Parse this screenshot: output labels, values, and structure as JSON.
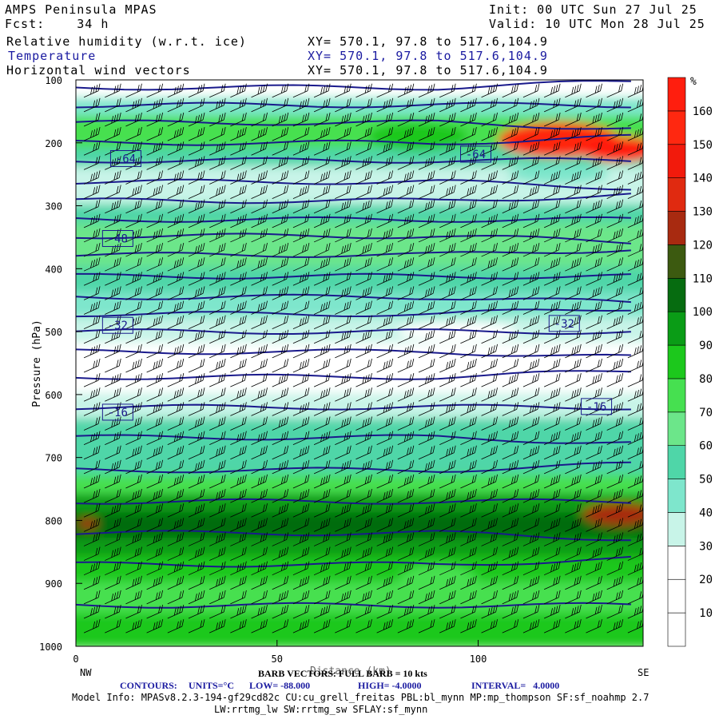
{
  "header": {
    "title": "AMPS Peninsula MPAS",
    "fcst": "Fcst:    34 h",
    "init": "Init: 00 UTC Sun 27 Jul 25",
    "valid": "Valid: 10 UTC Mon 28 Jul 25",
    "fields": [
      {
        "name": "Relative humidity (w.r.t. ice)",
        "xy": "XY= 570.1, 97.8 to 517.6,104.9",
        "color": "#000000"
      },
      {
        "name": "Temperature",
        "xy": "XY= 570.1, 97.8 to 517.6,104.9",
        "color": "#1a1aa0"
      },
      {
        "name": "Horizontal wind vectors",
        "xy": "XY= 570.1, 97.8 to 517.6,104.9",
        "color": "#000000"
      }
    ]
  },
  "chart_data": {
    "type": "heatmap",
    "ylabel": "Pressure (hPa)",
    "xlabel": "Distance (km)",
    "x_ticks": [
      0,
      50,
      100
    ],
    "x_range": [
      0,
      141
    ],
    "y_ticks": [
      100,
      200,
      300,
      400,
      500,
      600,
      700,
      800,
      900,
      1000
    ],
    "y_range": [
      100,
      1000
    ],
    "y_inverted": true,
    "left_end_label": "NW",
    "right_end_label": "SE",
    "colorbar": {
      "unit": "%",
      "levels": [
        0,
        10,
        20,
        30,
        40,
        50,
        60,
        70,
        80,
        90,
        100,
        110,
        120,
        130,
        140,
        150,
        160,
        170
      ],
      "tick_labels": [
        "10",
        "20",
        "30",
        "40",
        "50",
        "60",
        "70",
        "80",
        "90",
        "100",
        "110",
        "120",
        "130",
        "140",
        "150",
        "160"
      ],
      "colors": [
        "#ffffff",
        "#ffffff",
        "#ffffff",
        "#c8f4e8",
        "#7ee6cc",
        "#4fd6a8",
        "#6ce68a",
        "#46e050",
        "#1cc81c",
        "#0a9c16",
        "#066c10",
        "#3c5a10",
        "#a82a10",
        "#e02a10",
        "#f21a0c",
        "#ff2810",
        "#ff1e0e"
      ]
    },
    "rh_bands": [
      {
        "p": 100,
        "rh": 25
      },
      {
        "p": 130,
        "rh": 20
      },
      {
        "p": 160,
        "rh": 60
      },
      {
        "p": 185,
        "rh": 80
      },
      {
        "p": 210,
        "rh": 65
      },
      {
        "p": 240,
        "rh": 45
      },
      {
        "p": 270,
        "rh": 30
      },
      {
        "p": 300,
        "rh": 45
      },
      {
        "p": 330,
        "rh": 60
      },
      {
        "p": 360,
        "rh": 70
      },
      {
        "p": 400,
        "rh": 62
      },
      {
        "p": 440,
        "rh": 55
      },
      {
        "p": 480,
        "rh": 40
      },
      {
        "p": 520,
        "rh": 25
      },
      {
        "p": 560,
        "rh": 15
      },
      {
        "p": 600,
        "rh": 25
      },
      {
        "p": 640,
        "rh": 45
      },
      {
        "p": 690,
        "rh": 55
      },
      {
        "p": 730,
        "rh": 60
      },
      {
        "p": 760,
        "rh": 85
      },
      {
        "p": 790,
        "rh": 100
      },
      {
        "p": 830,
        "rh": 102
      },
      {
        "p": 860,
        "rh": 92
      },
      {
        "p": 900,
        "rh": 80
      },
      {
        "p": 950,
        "rh": 75
      },
      {
        "p": 1000,
        "rh": 92
      }
    ],
    "rh_features": [
      {
        "x": 85,
        "p": 190,
        "w": 25,
        "h": 45,
        "rh": 85
      },
      {
        "x": 120,
        "p": 195,
        "w": 30,
        "h": 55,
        "rh": 155
      },
      {
        "x": 135,
        "p": 210,
        "w": 20,
        "h": 40,
        "rh": 160
      },
      {
        "x": 135,
        "p": 790,
        "w": 18,
        "h": 35,
        "rh": 125
      },
      {
        "x": 3,
        "p": 805,
        "w": 5,
        "h": 15,
        "rh": 125
      },
      {
        "x": 90,
        "p": 900,
        "w": 20,
        "h": 60,
        "rh": 75
      },
      {
        "x": 120,
        "p": 250,
        "w": 25,
        "h": 30,
        "rh": 40
      },
      {
        "x": 95,
        "p": 500,
        "w": 30,
        "h": 30,
        "rh": 20
      }
    ],
    "temperature_contours": {
      "units": "°C",
      "low": -88.0,
      "high": -4.0,
      "interval": 4.0,
      "labels": [
        {
          "value": "-64",
          "x": 12,
          "p": 225
        },
        {
          "value": "-64",
          "x": 99,
          "p": 218
        },
        {
          "value": "-48",
          "x": 10,
          "p": 352
        },
        {
          "value": "-32",
          "x": 10,
          "p": 490
        },
        {
          "value": "-32",
          "x": 121,
          "p": 487
        },
        {
          "value": "-16",
          "x": 10,
          "p": 628
        },
        {
          "value": "-16",
          "x": 129,
          "p": 619
        }
      ],
      "line_pressures": [
        112,
        140,
        168,
        200,
        228,
        262,
        292,
        322,
        348,
        378,
        412,
        445,
        472,
        500,
        532,
        572,
        620,
        668,
        720,
        770,
        820,
        870,
        935
      ]
    },
    "wind": {
      "barb_note": "BARB VECTORS: FULL BARB = 10 kts"
    }
  },
  "footer": {
    "xlabel_overlay": "Distance (km)",
    "barb_note": "BARB VECTORS: FULL BARB = 10 kts",
    "contours_label": "CONTOURS:",
    "units": "UNITS=°C",
    "low": "LOW= -88.000",
    "high": "HIGH= -4.0000",
    "interval": "INTERVAL=   4.0000",
    "model_info_1": "Model Info: MPASv8.2.3-194-gf29cd82c CU:cu_grell_freitas PBL:bl_mynn MP:mp_thompson SF:sf_noahmp 2.7",
    "model_info_2": "LW:rrtmg_lw SW:rrtmg_sw SFLAY:sf_mynn"
  }
}
